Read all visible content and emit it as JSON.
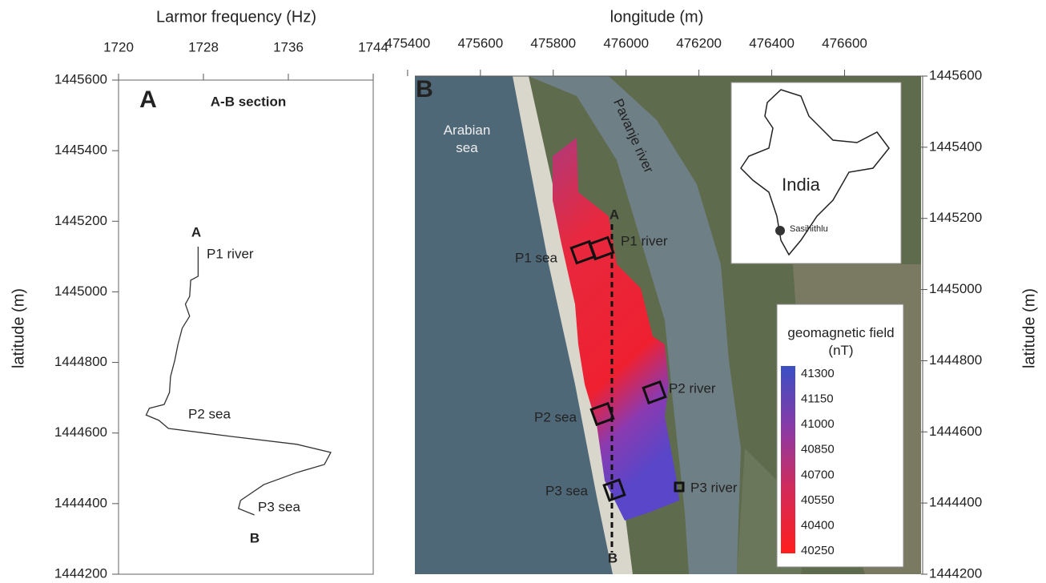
{
  "chart_data": [
    {
      "type": "line",
      "title": "A",
      "subtitle": "A-B section",
      "xlabel": "Larmor frequency (Hz)",
      "ylabel": "latitude (m)",
      "xlim": [
        1720,
        1744
      ],
      "xticks": [
        1720,
        1728,
        1736,
        1744
      ],
      "ylim": [
        1444200,
        1445600
      ],
      "yticks": [
        1444200,
        1444400,
        1444600,
        1444800,
        1445000,
        1445200,
        1445400,
        1445600
      ],
      "series": [
        {
          "color": "#333333",
          "values": [
            1727.5,
            1727.5,
            1726.8,
            1726.7,
            1726.3,
            1726.7,
            1726.0,
            1725.6,
            1725.3,
            1724.9,
            1724.8,
            1724.3,
            1722.9,
            1722.6,
            1723.8,
            1724.7,
            1730.7,
            1736.8,
            1740.0,
            1739.4,
            1736.8,
            1733.7,
            1731.5,
            1731.3,
            1732.8
          ],
          "y": [
            1445128,
            1445044,
            1445033,
            1444987,
            1444965,
            1444931,
            1444897,
            1444851,
            1444806,
            1444760,
            1444715,
            1444681,
            1444670,
            1444651,
            1444636,
            1444613,
            1444590,
            1444568,
            1444545,
            1444511,
            1444488,
            1444454,
            1444409,
            1444386,
            1444368
          ]
        }
      ],
      "annotations": [
        "A",
        "P1 river",
        "P2 sea",
        "P3 sea",
        "B"
      ]
    },
    {
      "type": "map",
      "title": "B",
      "xlabel": "longitude (m)",
      "ylabel": "latitude (m)",
      "xlim": [
        475420,
        476810
      ],
      "xticks": [
        475400,
        475600,
        475800,
        476000,
        476200,
        476400,
        476600
      ],
      "ylim": [
        1444200,
        1445600
      ],
      "yticks": [
        1444200,
        1444400,
        1444600,
        1444800,
        1445000,
        1445200,
        1445400,
        1445600
      ],
      "annotations": [
        "Arabian sea",
        "Pavanje river",
        "India",
        "Sasihithlu",
        "A",
        "P1 river",
        "P1 sea",
        "P2 river",
        "P2 sea",
        "P3 sea",
        "P3 river",
        "B"
      ],
      "colorbar": {
        "title": "geomagnetic field (nT)",
        "ticks": [
          41300,
          41150,
          41000,
          40850,
          40700,
          40550,
          40400,
          40250
        ],
        "colors": [
          "#3a4fc4",
          "#8a3aa6",
          "#d42a58",
          "#ff1e1e"
        ]
      }
    }
  ]
}
